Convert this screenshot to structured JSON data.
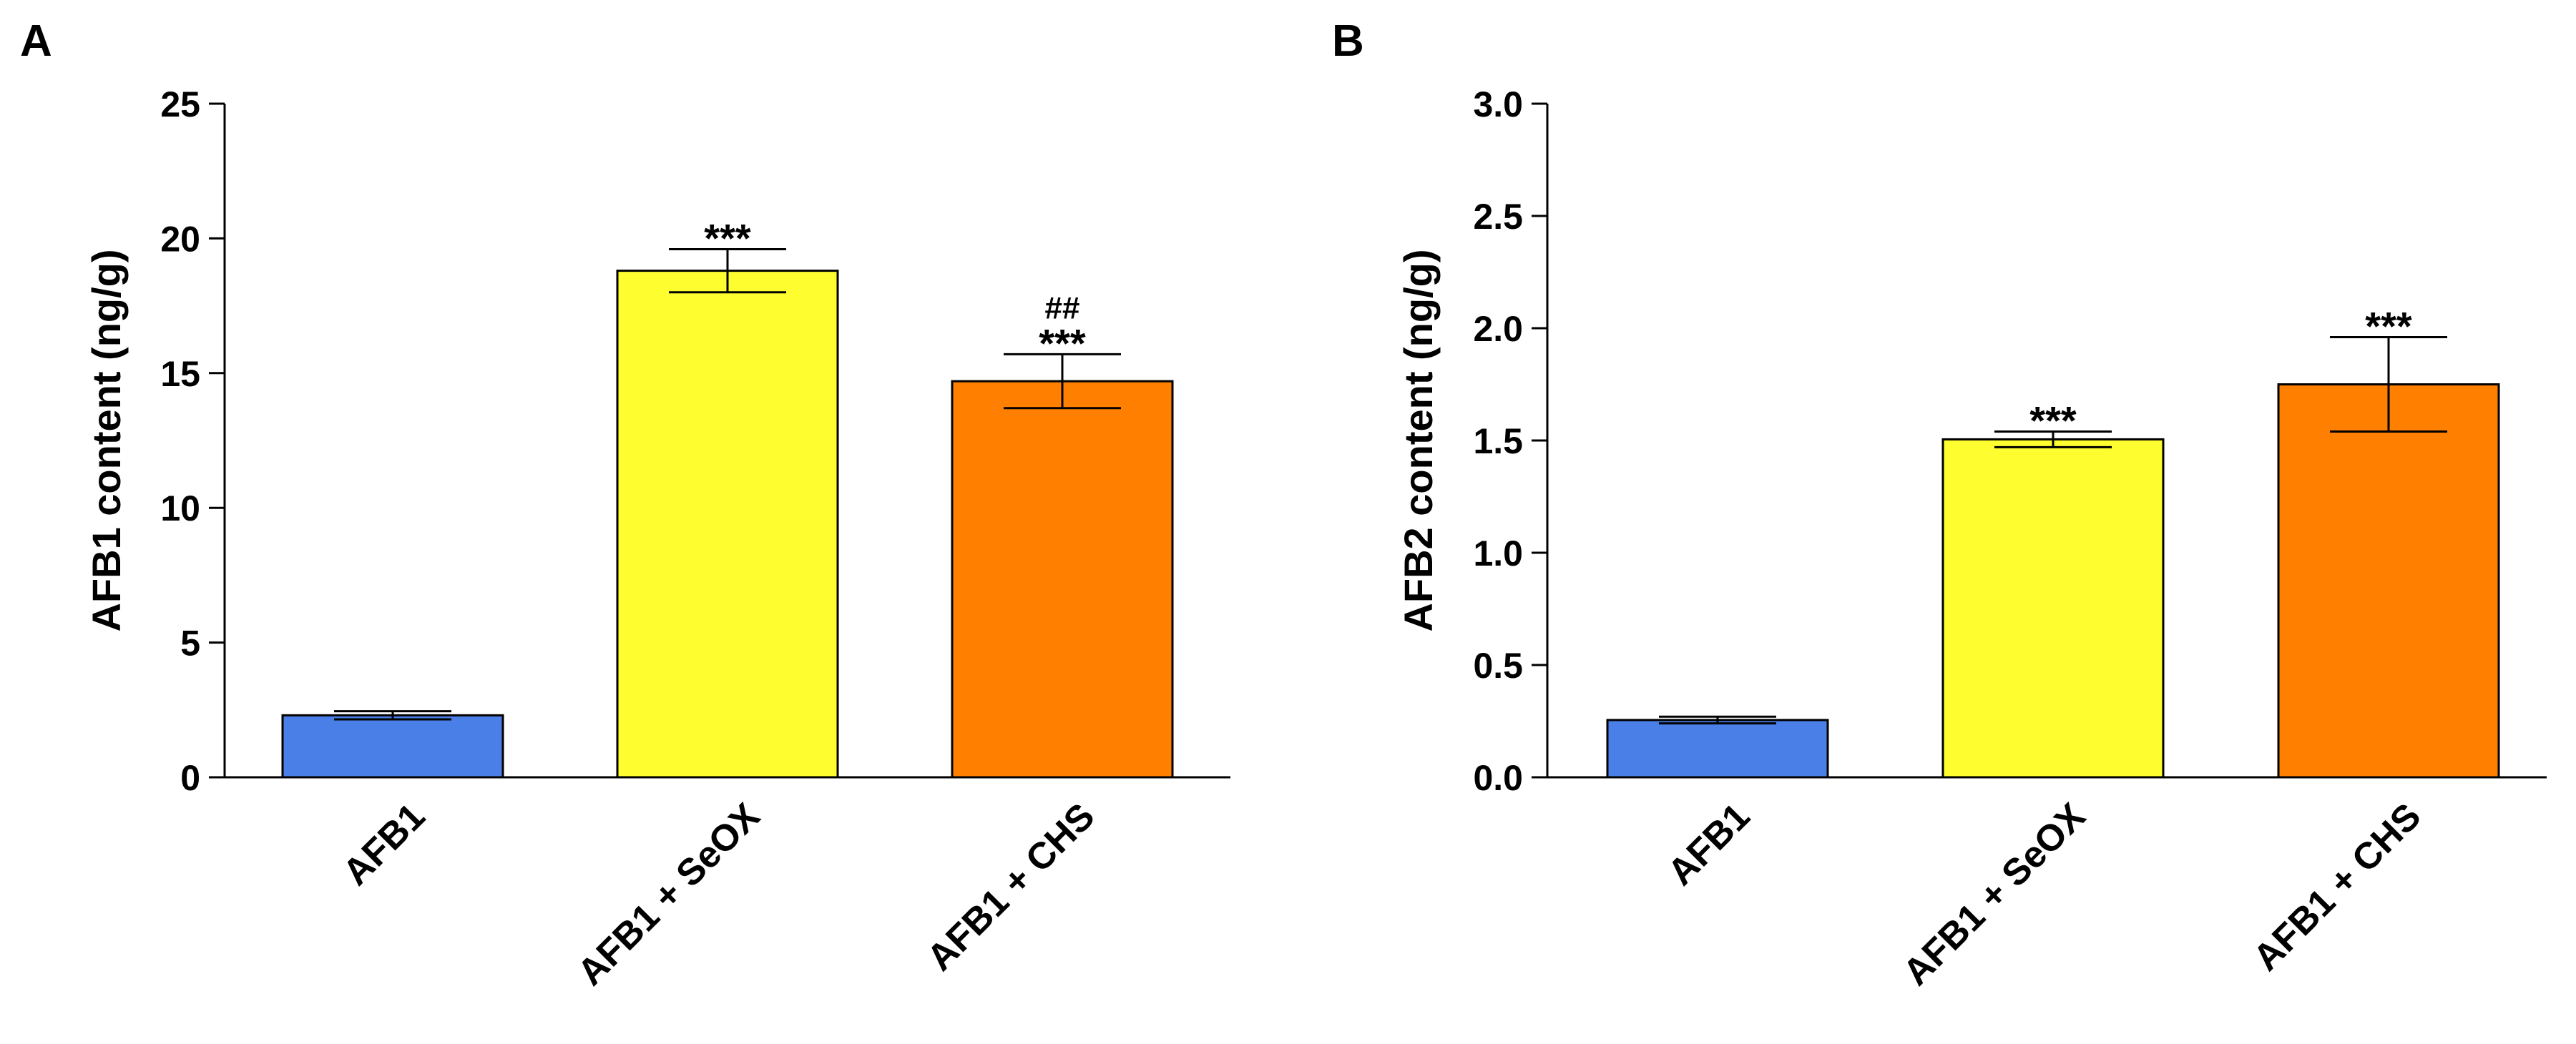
{
  "chart_data": [
    {
      "panel": "A",
      "type": "bar",
      "title": "",
      "xlabel": "",
      "ylabel": "AFB1 content  (ng/g)",
      "ylim": [
        0,
        25
      ],
      "yticks": [
        0,
        5,
        10,
        15,
        20,
        25
      ],
      "ytick_labels": [
        "0",
        "5",
        "10",
        "15",
        "20",
        "25"
      ],
      "grid": false,
      "categories": [
        "AFB1",
        "AFB1 + SeOX",
        "AFB1 + CHS"
      ],
      "values": [
        2.3,
        18.8,
        14.7
      ],
      "errors": [
        0.15,
        0.8,
        1.0
      ],
      "colors": [
        "#4a7fe8",
        "#fdfd2f",
        "#ff7f00"
      ],
      "annotations": [
        [],
        [
          "***"
        ],
        [
          "***",
          "##"
        ]
      ]
    },
    {
      "panel": "B",
      "type": "bar",
      "title": "",
      "xlabel": "",
      "ylabel": "AFB2 content  (ng/g)",
      "ylim": [
        0,
        3.0
      ],
      "yticks": [
        0,
        0.5,
        1.0,
        1.5,
        2.0,
        2.5,
        3.0
      ],
      "ytick_labels": [
        "0.0",
        "0.5",
        "1.0",
        "1.5",
        "2.0",
        "2.5",
        "3.0"
      ],
      "grid": false,
      "categories": [
        "AFB1",
        "AFB1 + SeOX",
        "AFB1 + CHS"
      ],
      "values": [
        0.255,
        1.505,
        1.75
      ],
      "errors": [
        0.015,
        0.035,
        0.21
      ],
      "colors": [
        "#4a7fe8",
        "#fdfd2f",
        "#ff7f00"
      ],
      "annotations": [
        [],
        [
          "***"
        ],
        [
          "***"
        ]
      ]
    }
  ]
}
